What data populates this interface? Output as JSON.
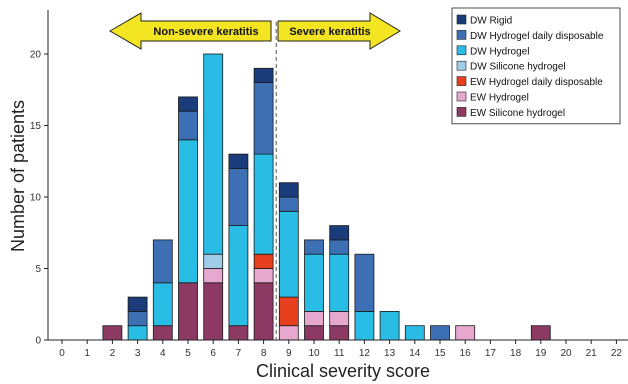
{
  "chart_data": {
    "type": "bar",
    "stacked": true,
    "xlabel": "Clinical severity score",
    "ylabel": "Number of patients",
    "xlim": [
      0,
      22
    ],
    "ylim": [
      0,
      22
    ],
    "x_ticks": [
      "0",
      "1",
      "2",
      "3",
      "4",
      "5",
      "6",
      "7",
      "8",
      "9",
      "10",
      "11",
      "12",
      "13",
      "14",
      "15",
      "16",
      "17",
      "18",
      "19",
      "20",
      "21",
      "22"
    ],
    "y_ticks": [
      "0",
      "5",
      "10",
      "15",
      "20"
    ],
    "grid": false,
    "legend_position": "top-right",
    "annotations": {
      "left_arrow": "Non-severe keratitis",
      "right_arrow": "Severe keratitis",
      "divider_at": 8.5
    },
    "categories": [
      2,
      3,
      4,
      5,
      6,
      7,
      8,
      9,
      10,
      11,
      12,
      13,
      14,
      15,
      16,
      19
    ],
    "series": [
      {
        "name": "EW Silicone hydrogel",
        "color": "#8c3a64",
        "values": [
          1,
          0,
          1,
          4,
          4,
          1,
          4,
          0,
          1,
          1,
          0,
          0,
          0,
          0,
          0,
          1
        ]
      },
      {
        "name": "EW Hydrogel",
        "color": "#e7a8cf",
        "values": [
          0,
          0,
          0,
          0,
          1,
          0,
          1,
          1,
          1,
          1,
          0,
          0,
          0,
          0,
          1,
          0
        ]
      },
      {
        "name": "EW Hydrogel daily disposable",
        "color": "#e8401e",
        "values": [
          0,
          0,
          0,
          0,
          0,
          0,
          1,
          2,
          0,
          0,
          0,
          0,
          0,
          0,
          0,
          0
        ]
      },
      {
        "name": "DW Silicone hydrogel",
        "color": "#9fcde8",
        "values": [
          0,
          0,
          0,
          0,
          1,
          0,
          0,
          0,
          0,
          0,
          0,
          0,
          0,
          0,
          0,
          0
        ]
      },
      {
        "name": "DW Hydrogel",
        "color": "#29bde6",
        "values": [
          0,
          1,
          3,
          10,
          14,
          7,
          7,
          6,
          4,
          4,
          2,
          2,
          1,
          0,
          0,
          0
        ]
      },
      {
        "name": "DW Hydrogel daily disposable",
        "color": "#3d6fb5",
        "values": [
          0,
          1,
          3,
          2,
          0,
          4,
          5,
          1,
          1,
          1,
          4,
          0,
          0,
          1,
          0,
          0
        ]
      },
      {
        "name": "DW Rigid",
        "color": "#1a3c7a",
        "values": [
          0,
          1,
          0,
          1,
          0,
          1,
          1,
          1,
          0,
          1,
          0,
          0,
          0,
          0,
          0,
          0
        ]
      }
    ]
  }
}
